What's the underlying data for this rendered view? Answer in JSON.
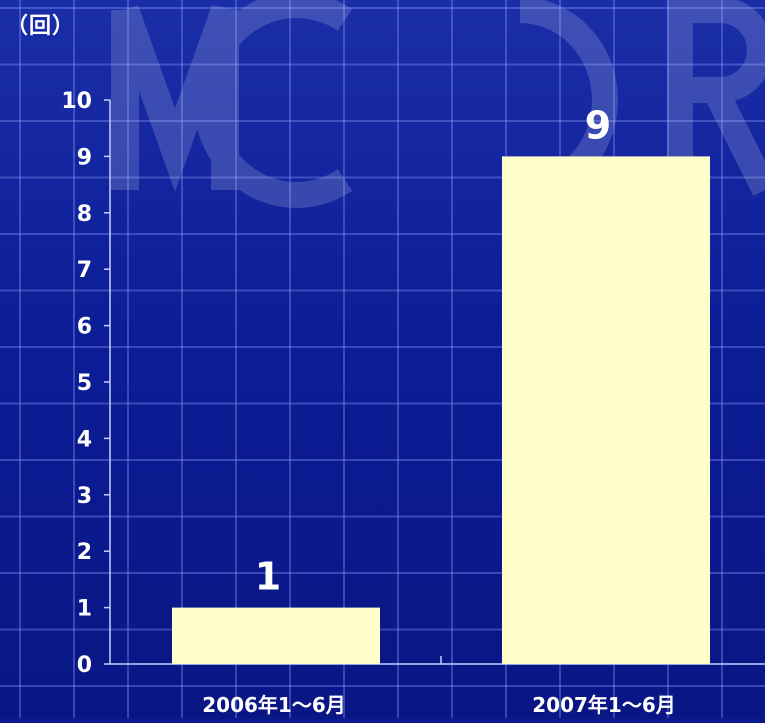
{
  "chart_data": {
    "type": "bar",
    "unit_label": "（回）",
    "categories": [
      "2006年1～6月",
      "2007年1～6月"
    ],
    "values": [
      1,
      9
    ],
    "data_labels": [
      "1",
      "9"
    ],
    "yticks": [
      "0",
      "1",
      "2",
      "3",
      "4",
      "5",
      "6",
      "7",
      "8",
      "9",
      "10"
    ],
    "ylim": [
      0,
      10
    ],
    "grid": false,
    "colors": {
      "bar": "#ffffcc",
      "background": "#0a1a8c",
      "text": "#ffffff",
      "axis": "#c8d0ff"
    }
  }
}
